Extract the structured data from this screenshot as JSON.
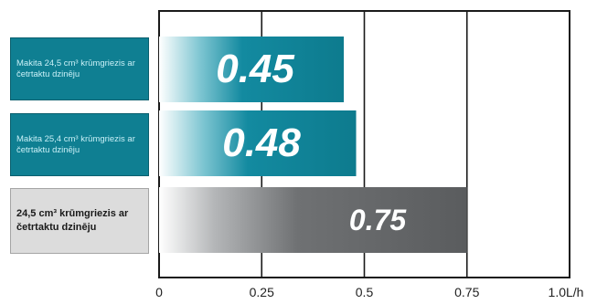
{
  "chart_data": {
    "type": "bar",
    "orientation": "horizontal",
    "categories": [
      "Makita 24,5 cm³ krūmgriezis ar četrtaktu dzinēju",
      "Makita 25,4 cm³ krūmgriezis ar četrtaktu dzinēju",
      "24,5 cm³ krūmgriezis ar četrtaktu dzinēju"
    ],
    "values": [
      0.45,
      0.48,
      0.75
    ],
    "value_labels": [
      "0.45",
      "0.48",
      "0.75"
    ],
    "bar_colors": [
      "#0f7f92",
      "#0f7f92",
      "#5e6062"
    ],
    "xticks": [
      "0",
      "0.25",
      "0.5",
      "0.75",
      "1.0L/h"
    ],
    "xlim": [
      0,
      1.0
    ],
    "grid": true
  }
}
